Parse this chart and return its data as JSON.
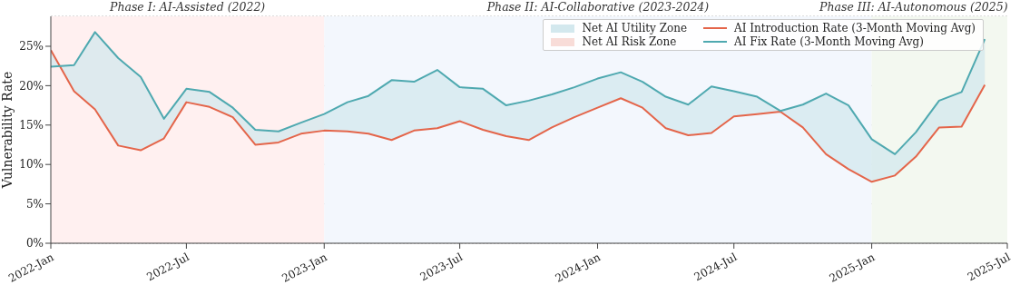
{
  "chart_data": {
    "type": "line",
    "ylabel": "Vulnerability Rate",
    "x": [
      "2022-01",
      "2022-02",
      "2022-03",
      "2022-04",
      "2022-05",
      "2022-06",
      "2022-07",
      "2022-08",
      "2022-09",
      "2022-10",
      "2022-11",
      "2022-12",
      "2023-01",
      "2023-02",
      "2023-03",
      "2023-04",
      "2023-05",
      "2023-06",
      "2023-07",
      "2023-08",
      "2023-09",
      "2023-10",
      "2023-11",
      "2023-12",
      "2024-01",
      "2024-02",
      "2024-03",
      "2024-04",
      "2024-05",
      "2024-06",
      "2024-07",
      "2024-08",
      "2024-09",
      "2024-10",
      "2024-11",
      "2024-12",
      "2025-01",
      "2025-02",
      "2025-03",
      "2025-04",
      "2025-05",
      "2025-06"
    ],
    "series": [
      {
        "name": "Net AI Utility Zone",
        "type": "area",
        "color": "#d3e8ee",
        "values": [
          null,
          null,
          null,
          null,
          null,
          null,
          null,
          null,
          null,
          null,
          null,
          null,
          null,
          null,
          null,
          null,
          null,
          null,
          null,
          null,
          null,
          null,
          null,
          null,
          null,
          null,
          null,
          null,
          null,
          null,
          null,
          null,
          null,
          null,
          null,
          null,
          null,
          null,
          null,
          null,
          null,
          null
        ]
      },
      {
        "name": "Net AI Risk Zone",
        "type": "area",
        "color": "#f8dcd8",
        "values": [
          null,
          null,
          null,
          null,
          null,
          null,
          null,
          null,
          null,
          null,
          null,
          null,
          null,
          null,
          null,
          null,
          null,
          null,
          null,
          null,
          null,
          null,
          null,
          null,
          null,
          null,
          null,
          null,
          null,
          null,
          null,
          null,
          null,
          null,
          null,
          null,
          null,
          null,
          null,
          null,
          null,
          null
        ]
      },
      {
        "name": "AI Introduction Rate (3-Month Moving Avg)",
        "type": "line",
        "color": "#e4654a",
        "values": [
          24.5,
          19.3,
          17.0,
          12.4,
          11.8,
          13.3,
          17.9,
          17.3,
          16.0,
          12.5,
          12.8,
          13.9,
          14.3,
          14.2,
          13.9,
          13.1,
          14.3,
          14.6,
          15.5,
          14.4,
          13.6,
          13.1,
          14.7,
          16.0,
          17.2,
          18.4,
          17.2,
          14.6,
          13.7,
          14.0,
          16.1,
          16.4,
          16.7,
          14.7,
          11.3,
          9.4,
          7.8,
          8.6,
          11.0,
          14.7,
          14.8,
          20.1
        ]
      },
      {
        "name": "AI Fix Rate (3-Month Moving Avg)",
        "type": "line",
        "color": "#4fa9b0",
        "values": [
          22.4,
          22.6,
          26.8,
          23.5,
          21.1,
          15.8,
          19.6,
          19.2,
          17.2,
          14.4,
          14.2,
          15.3,
          16.4,
          17.9,
          18.7,
          20.7,
          20.5,
          22.0,
          19.8,
          19.6,
          17.5,
          18.1,
          18.9,
          19.8,
          20.9,
          21.7,
          20.5,
          18.6,
          17.6,
          19.9,
          19.3,
          18.6,
          16.8,
          17.6,
          19.0,
          17.5,
          13.2,
          11.3,
          14.1,
          18.1,
          19.2,
          25.9
        ],
        "lower": [
          24.5,
          19.3,
          17.0,
          12.4,
          11.8,
          13.3,
          17.9,
          17.3,
          16.0,
          12.5,
          12.8,
          13.9,
          14.3,
          14.2,
          13.9,
          13.1,
          14.3,
          14.6,
          15.5,
          14.4,
          13.6,
          13.1,
          14.7,
          16.0,
          17.2,
          18.4,
          17.2,
          14.6,
          13.7,
          14.0,
          16.1,
          16.4,
          16.7,
          14.7,
          11.3,
          9.4,
          7.8,
          8.6,
          11.0,
          14.7,
          14.8,
          20.1
        ],
        "upper": [
          22.4,
          22.6,
          26.8,
          23.5,
          21.1,
          15.8,
          19.6,
          19.2,
          17.2,
          14.4,
          14.2,
          15.3,
          16.4,
          17.9,
          18.7,
          20.7,
          20.5,
          22.0,
          19.8,
          19.6,
          17.5,
          18.1,
          18.9,
          19.8,
          20.9,
          21.7,
          20.5,
          18.6,
          17.6,
          19.9,
          19.3,
          18.6,
          16.8,
          17.6,
          19.0,
          17.5,
          13.2,
          11.3,
          14.1,
          18.1,
          19.2,
          25.9
        ]
      }
    ],
    "xlim": [
      "2022-01",
      "2025-07"
    ],
    "xticks": [
      {
        "value": "2022-01",
        "label": "2022-Jan"
      },
      {
        "value": "2022-07",
        "label": "2022-Jul"
      },
      {
        "value": "2023-01",
        "label": "2023-Jan"
      },
      {
        "value": "2023-07",
        "label": "2023-Jul"
      },
      {
        "value": "2024-01",
        "label": "2024-Jan"
      },
      {
        "value": "2024-07",
        "label": "2024-Jul"
      },
      {
        "value": "2025-01",
        "label": "2025-Jan"
      },
      {
        "value": "2025-07",
        "label": "2025-Jul"
      }
    ],
    "ylim": [
      0,
      28.8
    ],
    "yticks": [
      {
        "value": 0,
        "label": "0%"
      },
      {
        "value": 5,
        "label": "5%"
      },
      {
        "value": 10,
        "label": "10%"
      },
      {
        "value": 15,
        "label": "15%"
      },
      {
        "value": 20,
        "label": "20%"
      },
      {
        "value": 25,
        "label": "25%"
      }
    ],
    "bands": [
      {
        "axis": "x",
        "from": "2022-01",
        "to": "2023-01",
        "label": "Phase I: AI-Assisted (2022)",
        "color": "#fff0f0"
      },
      {
        "axis": "x",
        "from": "2023-01",
        "to": "2025-01",
        "label": "Phase II: AI-Collaborative (2023-2024)",
        "color": "#f3f7fd"
      },
      {
        "axis": "x",
        "from": "2025-01",
        "to": "2025-07",
        "label": "Phase III: AI-Autonomous (2025)",
        "color": "#f3f8f0"
      }
    ],
    "grid": "y",
    "legend": "top right",
    "marker": "none",
    "line_style": "solid"
  }
}
